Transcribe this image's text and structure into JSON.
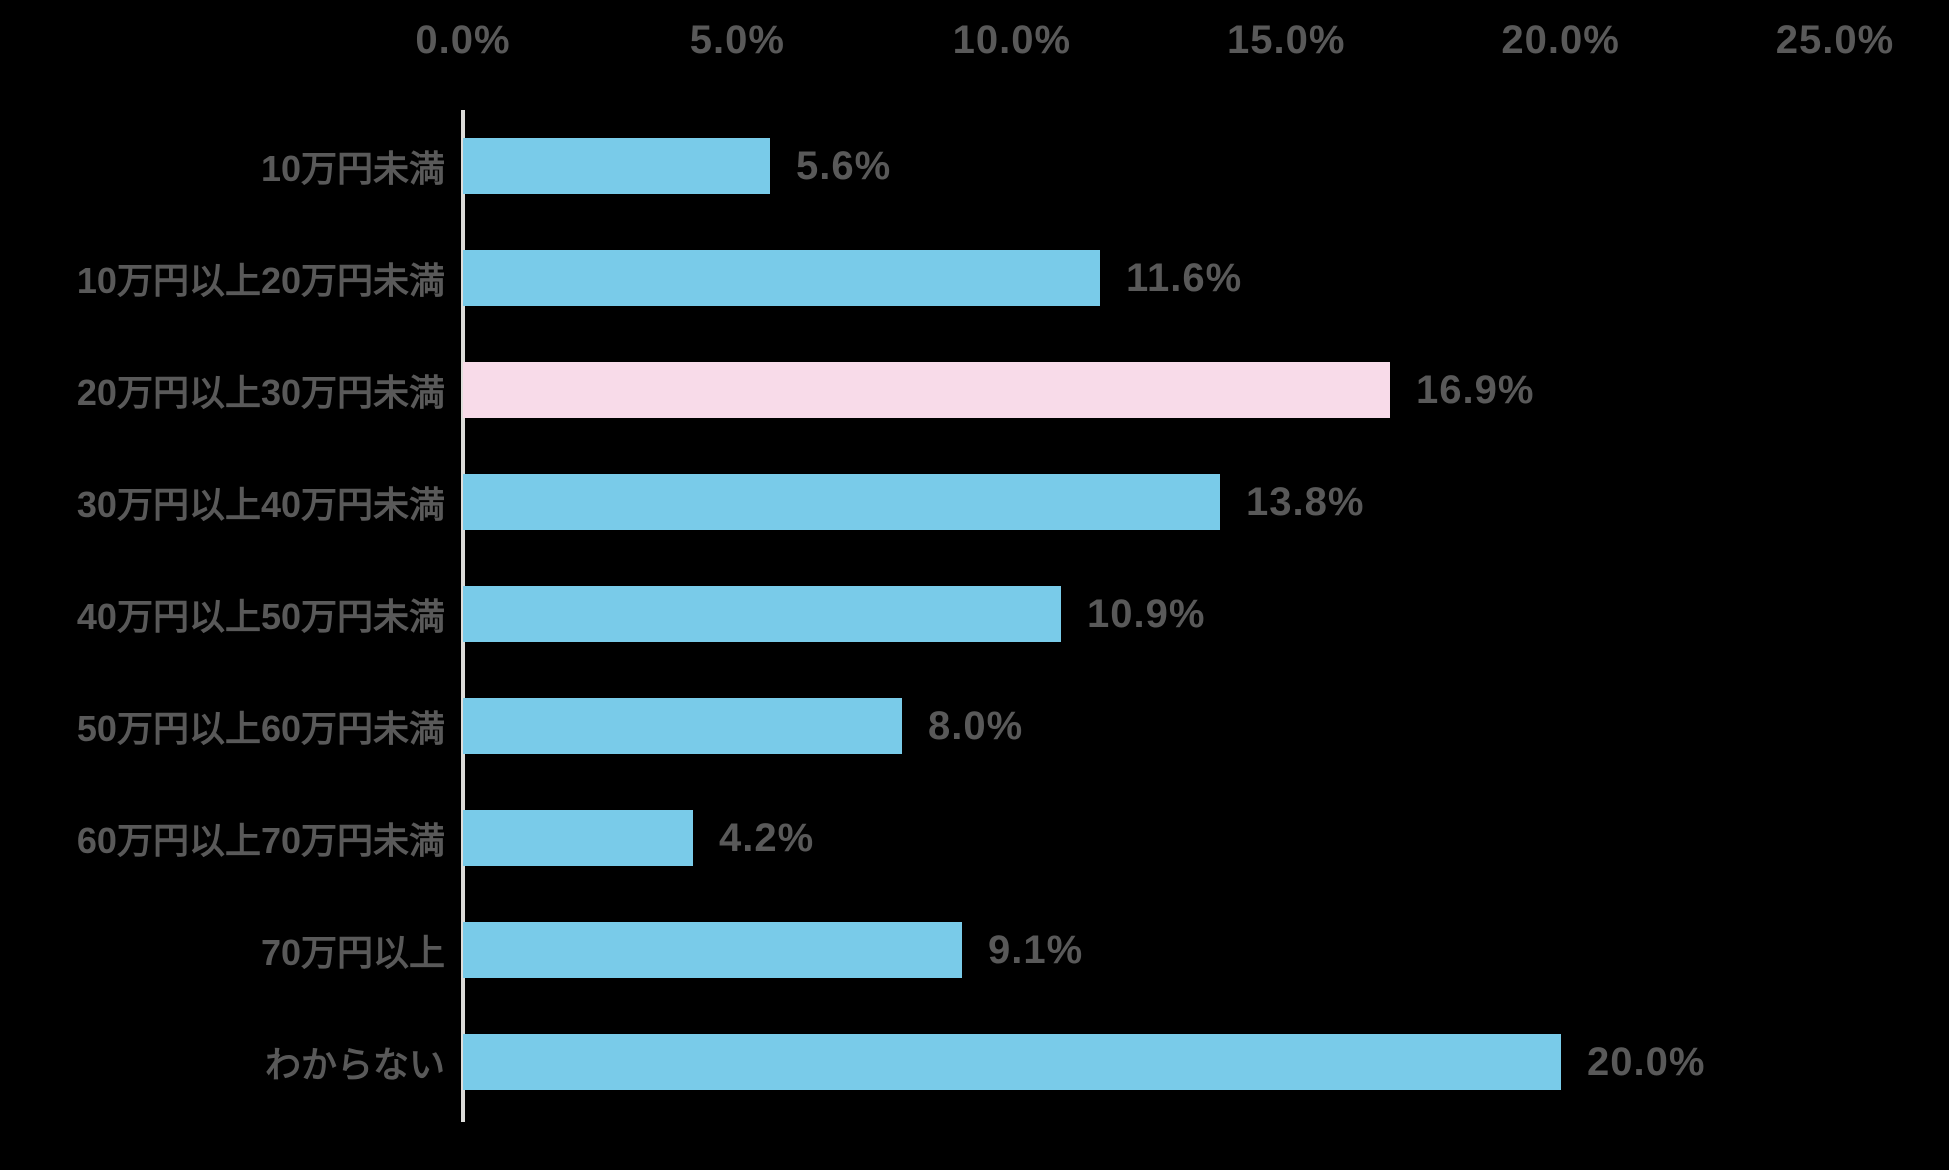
{
  "chart_data": {
    "type": "bar",
    "orientation": "horizontal",
    "title": "",
    "xlabel": "",
    "ylabel": "",
    "categories": [
      "10万円未満",
      "10万円以上20万円未満",
      "20万円以上30万円未満",
      "30万円以上40万円未満",
      "40万円以上50万円未満",
      "50万円以上60万円未満",
      "60万円以上70万円未満",
      "70万円以上",
      "わからない"
    ],
    "values": [
      5.6,
      11.6,
      16.9,
      13.8,
      10.9,
      8.0,
      4.2,
      9.1,
      20.0
    ],
    "value_labels": [
      "5.6%",
      "11.6%",
      "16.9%",
      "13.8%",
      "10.9%",
      "8.0%",
      "4.2%",
      "9.1%",
      "20.0%"
    ],
    "highlight_index": 2,
    "x_ticks": [
      "0.0%",
      "5.0%",
      "10.0%",
      "15.0%",
      "20.0%",
      "25.0%"
    ],
    "xlim": [
      0,
      25
    ],
    "grid": false,
    "legend": "none",
    "colors": {
      "bar": "#79CBE9",
      "bar_highlight": "#F8DBE9",
      "text": "#595959",
      "axis_line": "#DDDDDA",
      "background": "#000000"
    }
  }
}
